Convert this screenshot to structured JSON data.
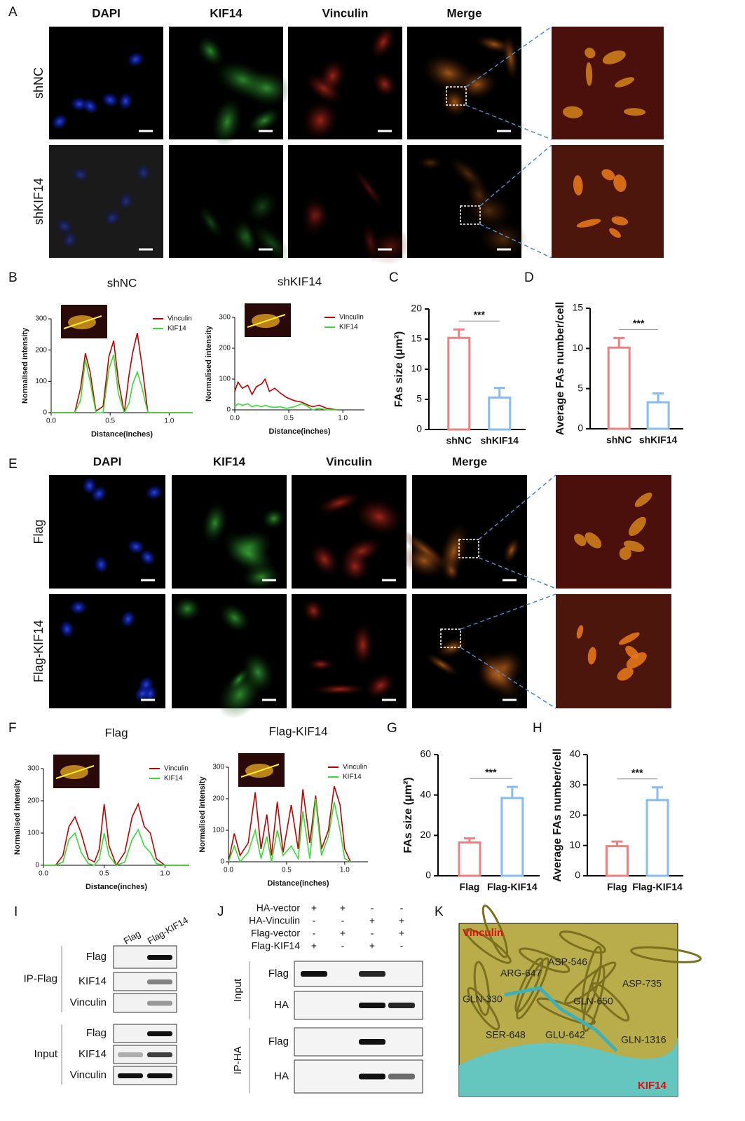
{
  "letters": [
    "A",
    "B",
    "C",
    "D",
    "E",
    "F",
    "G",
    "H",
    "I",
    "J",
    "K"
  ],
  "panel_a": {
    "channels": [
      "DAPI",
      "KIF14",
      "Vinculin",
      "Merge"
    ],
    "rows": [
      "shNC",
      "shKIF14"
    ]
  },
  "panel_e": {
    "channels": [
      "DAPI",
      "KIF14",
      "Vinculin",
      "Merge"
    ],
    "rows": [
      "Flag",
      "Flag-KIF14"
    ]
  },
  "profiles": [
    {
      "title": "shNC",
      "xlabel": "Distance(inches)",
      "ylabel": "Normalised intensity",
      "xlim": [
        0,
        1.2
      ],
      "xticks": [
        {
          "value": 0,
          "label": "0.0"
        },
        {
          "value": 0.5,
          "label": "0.5"
        },
        {
          "value": 1,
          "label": "1.0"
        }
      ],
      "ylim": [
        0,
        300
      ],
      "yticks": [
        0,
        100,
        200,
        300
      ],
      "series": [
        {
          "name": "Vinculin",
          "color": "#c00000",
          "x": [
            0,
            0.2,
            0.25,
            0.29,
            0.33,
            0.38,
            0.44,
            0.49,
            0.53,
            0.57,
            0.62,
            0.66,
            0.69,
            0.73,
            0.77,
            0.82,
            0.88,
            1.2
          ],
          "values": [
            0,
            0,
            80,
            190,
            130,
            5,
            20,
            180,
            230,
            100,
            0,
            120,
            190,
            255,
            150,
            0,
            0,
            0
          ]
        },
        {
          "name": "KIF14",
          "color": "#33dd33",
          "x": [
            0,
            0.2,
            0.25,
            0.29,
            0.33,
            0.38,
            0.44,
            0.49,
            0.53,
            0.57,
            0.62,
            0.66,
            0.69,
            0.73,
            0.77,
            0.82,
            0.88,
            1.2
          ],
          "values": [
            0,
            0,
            40,
            170,
            100,
            0,
            0,
            140,
            185,
            60,
            0,
            30,
            90,
            130,
            80,
            0,
            0,
            0
          ]
        }
      ]
    },
    {
      "title": "shKIF14",
      "xlabel": "Distance(inches)",
      "ylabel": "Normalised intensity",
      "xlim": [
        0,
        1.2
      ],
      "xticks": [
        {
          "value": 0,
          "label": "0.0"
        },
        {
          "value": 0.5,
          "label": "0.5"
        },
        {
          "value": 1,
          "label": "1.0"
        }
      ],
      "ylim": [
        0,
        300
      ],
      "yticks": [
        0,
        100,
        200,
        300
      ],
      "series": [
        {
          "name": "Vinculin",
          "color": "#c00000",
          "x": [
            0,
            0.03,
            0.07,
            0.12,
            0.16,
            0.2,
            0.25,
            0.28,
            0.32,
            0.37,
            0.42,
            0.48,
            0.55,
            0.62,
            0.68,
            0.72,
            0.78,
            0.85,
            0.95
          ],
          "values": [
            60,
            90,
            70,
            80,
            50,
            75,
            85,
            100,
            60,
            70,
            55,
            40,
            30,
            25,
            15,
            10,
            15,
            5,
            0
          ]
        },
        {
          "name": "KIF14",
          "color": "#33dd33",
          "x": [
            0,
            0.03,
            0.07,
            0.12,
            0.16,
            0.2,
            0.25,
            0.28,
            0.32,
            0.37,
            0.42,
            0.48,
            0.55,
            0.62,
            0.68,
            0.72,
            0.78,
            0.85,
            0.95
          ],
          "values": [
            10,
            20,
            15,
            20,
            10,
            15,
            10,
            15,
            10,
            8,
            10,
            5,
            10,
            20,
            10,
            0,
            5,
            0,
            0
          ]
        }
      ]
    },
    {
      "title": "Flag",
      "xlabel": "Distance(inches)",
      "ylabel": "Normalised intensity",
      "xlim": [
        0,
        1.2
      ],
      "xticks": [
        {
          "value": 0,
          "label": "0.0"
        },
        {
          "value": 0.5,
          "label": "0.5"
        },
        {
          "value": 1,
          "label": "1.0"
        }
      ],
      "ylim": [
        0,
        300
      ],
      "yticks": [
        0,
        100,
        200,
        300
      ],
      "series": [
        {
          "name": "Vinculin",
          "color": "#c00000",
          "x": [
            0,
            0.1,
            0.16,
            0.21,
            0.26,
            0.31,
            0.37,
            0.42,
            0.46,
            0.5,
            0.54,
            0.6,
            0.67,
            0.73,
            0.78,
            0.83,
            0.88,
            0.93,
            1.0,
            1.2
          ],
          "values": [
            0,
            0,
            30,
            120,
            150,
            100,
            20,
            10,
            50,
            190,
            60,
            0,
            40,
            150,
            190,
            120,
            100,
            20,
            0,
            0
          ]
        },
        {
          "name": "KIF14",
          "color": "#33dd33",
          "x": [
            0,
            0.1,
            0.16,
            0.21,
            0.26,
            0.31,
            0.37,
            0.42,
            0.46,
            0.5,
            0.54,
            0.6,
            0.67,
            0.73,
            0.78,
            0.83,
            0.88,
            0.93,
            1.0,
            1.2
          ],
          "values": [
            0,
            0,
            10,
            80,
            100,
            40,
            5,
            0,
            20,
            100,
            30,
            0,
            10,
            80,
            110,
            60,
            40,
            5,
            0,
            0
          ]
        }
      ]
    },
    {
      "title": "Flag-KIF14",
      "xlabel": "Distance(inches)",
      "ylabel": "Normalised intensity",
      "xlim": [
        0,
        1.2
      ],
      "xticks": [
        {
          "value": 0,
          "label": "0.0"
        },
        {
          "value": 0.5,
          "label": "0.5"
        },
        {
          "value": 1,
          "label": "1.0"
        }
      ],
      "ylim": [
        0,
        300
      ],
      "yticks": [
        0,
        100,
        200,
        300
      ],
      "series": [
        {
          "name": "Vinculin",
          "color": "#c00000",
          "x": [
            0,
            0.05,
            0.1,
            0.17,
            0.23,
            0.28,
            0.33,
            0.37,
            0.42,
            0.47,
            0.54,
            0.6,
            0.64,
            0.7,
            0.75,
            0.8,
            0.86,
            0.91,
            0.96,
            1.0,
            1.05
          ],
          "values": [
            0,
            90,
            20,
            60,
            220,
            40,
            150,
            20,
            190,
            30,
            180,
            40,
            230,
            60,
            210,
            40,
            100,
            240,
            180,
            40,
            0
          ]
        },
        {
          "name": "KIF14",
          "color": "#33dd33",
          "x": [
            0,
            0.05,
            0.1,
            0.17,
            0.23,
            0.28,
            0.33,
            0.37,
            0.42,
            0.47,
            0.54,
            0.6,
            0.64,
            0.7,
            0.75,
            0.8,
            0.86,
            0.91,
            0.96,
            1.0,
            1.05
          ],
          "values": [
            0,
            50,
            0,
            30,
            100,
            10,
            80,
            0,
            100,
            20,
            50,
            10,
            160,
            10,
            200,
            20,
            80,
            190,
            100,
            10,
            0
          ]
        }
      ]
    }
  ],
  "bars": [
    {
      "ylabel": "FAs size (μm²)",
      "categories": [
        "shNC",
        "shKIF14"
      ],
      "values": [
        15.2,
        5.3
      ],
      "errors": [
        1.4,
        1.6
      ],
      "colors": [
        "#ee8080",
        "#88bbee"
      ],
      "ylim": [
        0,
        20
      ],
      "yticks": [
        0,
        5,
        10,
        15,
        20
      ],
      "significance": "***"
    },
    {
      "ylabel": "Average FAs number/cell",
      "categories": [
        "shNC",
        "shKIF14"
      ],
      "values": [
        10.1,
        3.3
      ],
      "errors": [
        1.2,
        1.1
      ],
      "colors": [
        "#ee8080",
        "#88bbee"
      ],
      "ylim": [
        0,
        15
      ],
      "yticks": [
        0,
        5,
        10,
        15
      ],
      "significance": "***"
    },
    {
      "ylabel": "FAs size (μm²)",
      "categories": [
        "Flag",
        "Flag-KIF14"
      ],
      "values": [
        16.5,
        38.5
      ],
      "errors": [
        2,
        5.5
      ],
      "colors": [
        "#ee8080",
        "#88bbee"
      ],
      "ylim": [
        0,
        60
      ],
      "yticks": [
        0,
        20,
        40,
        60
      ],
      "significance": "***"
    },
    {
      "ylabel": "Average FAs number/cell",
      "categories": [
        "Flag",
        "Flag-KIF14"
      ],
      "values": [
        9.8,
        25
      ],
      "errors": [
        1.5,
        4.2
      ],
      "colors": [
        "#ee8080",
        "#88bbee"
      ],
      "ylim": [
        0,
        40
      ],
      "yticks": [
        0,
        10,
        20,
        30,
        40
      ],
      "significance": "***"
    }
  ],
  "blot_i": {
    "lanes": [
      "Flag",
      "Flag-KIF14"
    ],
    "groups": [
      {
        "label": "IP-Flag",
        "rows": [
          "Flag",
          "KIF14",
          "Vinculin"
        ]
      },
      {
        "label": "Input",
        "rows": [
          "Flag",
          "KIF14",
          "Vinculin"
        ]
      }
    ]
  },
  "blot_j": {
    "conditions": [
      {
        "label": "HA-vector",
        "signs": [
          "+",
          "+",
          "-",
          "-"
        ]
      },
      {
        "label": "HA-Vinculin",
        "signs": [
          "-",
          "-",
          "+",
          "+"
        ]
      },
      {
        "label": "Flag-vector",
        "signs": [
          "-",
          "+",
          "-",
          "+"
        ]
      },
      {
        "label": "Flag-KIF14",
        "signs": [
          "+",
          "-",
          "+",
          "-"
        ]
      }
    ],
    "groups": [
      {
        "label": "Input",
        "rows": [
          "Flag",
          "HA"
        ]
      },
      {
        "label": "IP-HA",
        "rows": [
          "Flag",
          "HA"
        ]
      }
    ]
  },
  "structure_k": {
    "proteins": [
      "Vinculin",
      "KIF14"
    ],
    "residues": [
      "ASP-546",
      "ARG-647",
      "GLN-330",
      "GLN-650",
      "ASP-735",
      "SER-648",
      "GLU-642",
      "GLN-1316"
    ]
  }
}
